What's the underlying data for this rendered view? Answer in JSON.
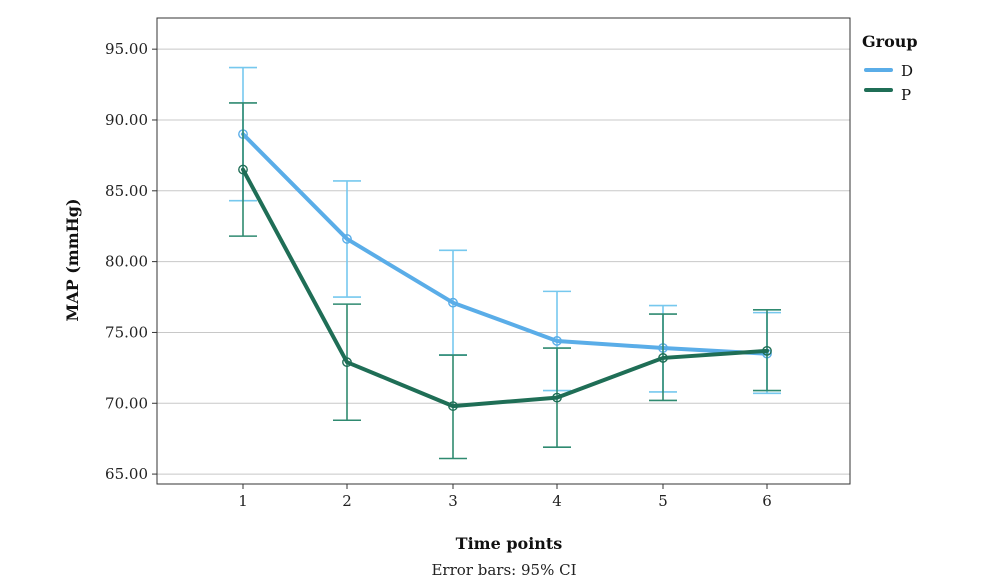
{
  "chart_data": {
    "type": "line",
    "title": "",
    "xlabel": "Time points",
    "ylabel": "MAP (mmHg)",
    "note": "Error bars: 95% CI",
    "categories": [
      "1",
      "2",
      "3",
      "4",
      "5",
      "6"
    ],
    "y_ticks": [
      "65.00",
      "70.00",
      "75.00",
      "80.00",
      "85.00",
      "90.00",
      "95.00"
    ],
    "ylim": [
      64.3,
      97.2
    ],
    "grid": "horizontal",
    "legend": {
      "title": "Group",
      "position": "right"
    },
    "series": [
      {
        "name": "D",
        "color": "#5aade8",
        "values": [
          89.0,
          81.6,
          77.1,
          74.4,
          73.9,
          73.5
        ],
        "ci_low": [
          84.3,
          77.5,
          73.4,
          70.9,
          70.8,
          70.7
        ],
        "ci_high": [
          93.7,
          85.7,
          80.8,
          77.9,
          76.9,
          76.4
        ]
      },
      {
        "name": "P",
        "color": "#1f6e56",
        "values": [
          86.5,
          72.9,
          69.8,
          70.4,
          73.2,
          73.7
        ],
        "ci_low": [
          81.8,
          68.8,
          66.1,
          66.9,
          70.2,
          70.9
        ],
        "ci_high": [
          91.2,
          77.0,
          73.4,
          73.9,
          76.3,
          76.6
        ]
      }
    ]
  }
}
